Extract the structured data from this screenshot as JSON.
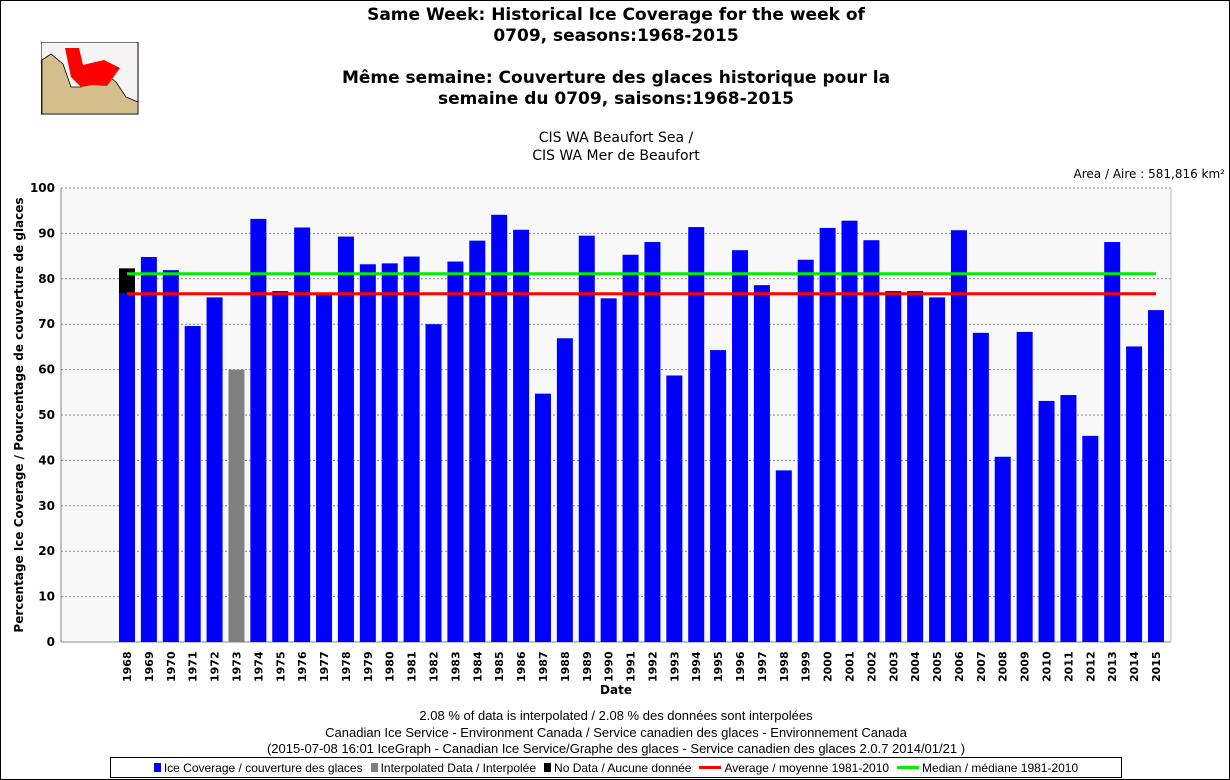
{
  "titles": {
    "en1": "Same Week: Historical Ice Coverage for the week of",
    "en2": "0709, seasons:1968-2015",
    "fr1": "Même semaine: Couverture des glaces historique pour la",
    "fr2": "semaine du 0709, saisons:1968-2015",
    "region1": "CIS WA Beaufort Sea /",
    "region2": "CIS WA Mer de Beaufort",
    "area": "Area / Aire : 581,816 km²"
  },
  "footer": {
    "line1": "2.08 % of data is interpolated / 2.08 % des données sont interpolées",
    "line2": "Canadian Ice Service - Environment Canada / Service canadien des glaces - Environnement Canada",
    "line3": "(2015-07-08 16:01 IceGraph - Canadian Ice Service/Graphe des glaces - Service canadien des glaces 2.0.7 2014/01/21 )"
  },
  "colors": {
    "coverage": "#0000ff",
    "interpolated": "#808080",
    "nodata": "#000000",
    "average": "#ff0000",
    "median": "#00ee00"
  },
  "chart_data": {
    "type": "bar",
    "title": "Same Week: Historical Ice Coverage for the week of 0709, seasons:1968-2015",
    "xlabel": "Date",
    "ylabel": "Percentage Ice Coverage / Pourcentage de couverture de glaces",
    "ylim": [
      0,
      100
    ],
    "yticks": [
      0,
      10,
      20,
      30,
      40,
      50,
      60,
      70,
      80,
      90,
      100
    ],
    "grid": true,
    "legend_position": "bottom",
    "categories": [
      "1968",
      "1969",
      "1970",
      "1971",
      "1972",
      "1973",
      "1974",
      "1975",
      "1976",
      "1977",
      "1978",
      "1979",
      "1980",
      "1981",
      "1982",
      "1983",
      "1984",
      "1985",
      "1986",
      "1987",
      "1988",
      "1989",
      "1990",
      "1991",
      "1992",
      "1993",
      "1994",
      "1995",
      "1996",
      "1997",
      "1998",
      "1999",
      "2000",
      "2001",
      "2002",
      "2003",
      "2004",
      "2005",
      "2006",
      "2007",
      "2008",
      "2009",
      "2010",
      "2011",
      "2012",
      "2013",
      "2014",
      "2015"
    ],
    "values": [
      76.7,
      84.8,
      81.9,
      69.6,
      75.9,
      60.0,
      93.2,
      77.3,
      91.3,
      76.5,
      89.3,
      83.2,
      83.4,
      84.9,
      70.0,
      83.8,
      88.4,
      94.1,
      90.8,
      54.7,
      66.9,
      89.5,
      75.7,
      85.3,
      88.1,
      58.7,
      91.4,
      64.3,
      86.3,
      78.6,
      37.8,
      84.2,
      91.2,
      92.8,
      88.5,
      77.3,
      77.3,
      75.9,
      90.7,
      68.1,
      40.8,
      68.3,
      53.1,
      54.4,
      45.4,
      88.1,
      65.1,
      73.1
    ],
    "interpolated": [
      "1973"
    ],
    "nodata_segments": [
      {
        "year": "1968",
        "from": 76.7,
        "to": 82.3
      }
    ],
    "average": 76.7,
    "median": 81.1,
    "legend": [
      "Ice Coverage / couverture des glaces",
      "Interpolated Data / Interpolée",
      "No Data / Aucune donnée",
      "Average / moyenne 1981-2010",
      "Median / médiane 1981-2010"
    ]
  }
}
